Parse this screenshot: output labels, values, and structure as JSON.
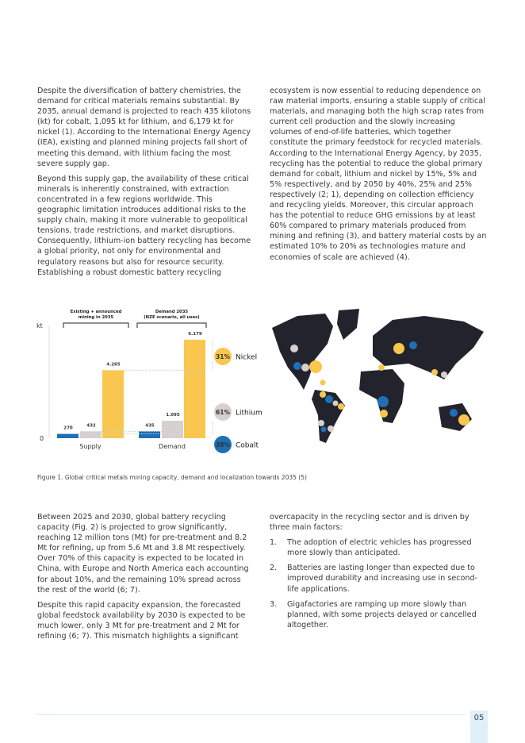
{
  "left_top": [
    "Despite the diversification of battery chemistries, the demand for critical materials remains substantial. By 2035, annual demand is projected to reach 435 kilotons (kt) for cobalt, 1,095 kt for lithium, and 6,179 kt for nickel (1). According to the International Energy Agency (IEA), existing and planned mining projects fall short of meeting this demand, with lithium facing the most severe supply gap.",
    "Beyond this supply gap, the availability of these critical minerals is inherently constrained, with extraction concentrated in a few regions worldwide. This geographic limitation introduces additional risks to the supply chain, making it more vulnerable to geopolitical tensions, trade restrictions, and market disruptions. Consequently, lithium-ion battery recycling has become a global priority, not only for environmental and regulatory reasons but also for resource security. Establishing a robust domestic battery recycling"
  ],
  "right_top": [
    "ecosystem is now essential to reducing dependence on raw material imports, ensuring a stable supply of critical materials, and managing both the high scrap rates from current cell production and the slowly increasing volumes of end-of-life batteries, which together constitute the primary feedstock for recycled materials. According to the International Energy Agency, by 2035, recycling has the potential to reduce the global primary demand for cobalt, lithium and nickel by 15%, 5% and 5% respectively, and by 2050 by 40%, 25% and 25% respectively (2; 1), depending on collection efficiency and recycling yields. Moreover, this circular approach has the potential to reduce GHG emissions by at least 60% compared to primary materials produced from mining and refining (3), and battery material costs by an estimated 10% to 20% as technologies mature and economies of scale are achieved (4)."
  ],
  "chart_data": {
    "type": "bar",
    "ylabel": "kt",
    "yticks": [
      "0"
    ],
    "categories": [
      "Supply",
      "Demand"
    ],
    "group_labels": [
      "Existing + announced mining in 2035",
      "Demand 2035 (NZE scenario, all uses)"
    ],
    "series": [
      {
        "name": "Cobalt",
        "values": [
          270,
          435
        ],
        "labels": [
          "270",
          "435"
        ],
        "color": "#1f6fb5",
        "gap_pct": "38%"
      },
      {
        "name": "Lithium",
        "values": [
          432,
          1095
        ],
        "labels": [
          "432",
          "1.095"
        ],
        "color": "#d8cfcf",
        "gap_pct": "61%"
      },
      {
        "name": "Nickel",
        "values": [
          4265,
          6179
        ],
        "labels": [
          "4.265",
          "6.179"
        ],
        "color": "#f9c74f",
        "gap_pct": "31%"
      }
    ],
    "ylim": [
      0,
      6179
    ]
  },
  "caption": "Figure 1. Global critical metals mining capacity, demand and localization towards 2035 (5)",
  "left_bottom": [
    "Between 2025 and 2030, global battery recycling capacity (Fig. 2) is projected to grow significantly, reaching 12 million tons (Mt) for pre-treatment and 8.2 Mt for refining, up from 5.6 Mt and 3.8 Mt respectively. Over 70% of this capacity is expected to be located in China, with Europe and North America each accounting for about 10%, and the remaining 10% spread across the rest of the world (6; 7).",
    "Despite this rapid capacity expansion, the forecasted global feedstock availability by 2030 is expected to be much lower, only 3 Mt for pre-treatment and 2 Mt for refining (6; 7). This mismatch highlights a significant"
  ],
  "right_bottom": {
    "intro": "overcapacity in the recycling sector and is driven by three main factors:",
    "items": [
      {
        "num": "1.",
        "text": "The adoption of electric vehicles has progressed more slowly than anticipated."
      },
      {
        "num": "2.",
        "text": "Batteries are lasting longer than expected due to improved durability and increasing use in second-life applications."
      },
      {
        "num": "3.",
        "text": "Gigafactories are ramping up more slowly than planned, with some projects delayed or cancelled altogether."
      }
    ]
  },
  "page_number": "05"
}
